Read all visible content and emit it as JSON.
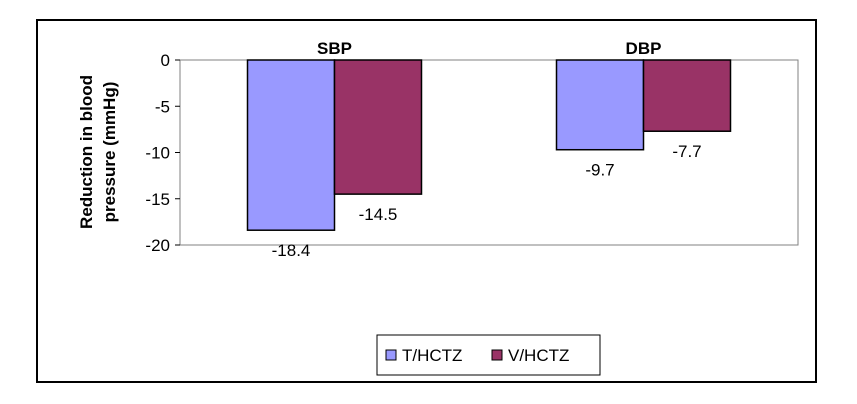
{
  "chart_data": {
    "type": "bar",
    "categories": [
      "SBP",
      "DBP"
    ],
    "series": [
      {
        "name": "T/HCTZ",
        "values": [
          -18.4,
          -9.7
        ],
        "color": "#9999FF"
      },
      {
        "name": "V/HCTZ",
        "values": [
          -14.5,
          -7.7
        ],
        "color": "#993366"
      }
    ],
    "ylabel": "Reduction in blood pressure (mmHg)",
    "ylabel_lines": [
      "Reduction in blood",
      "pressure (mmHg)"
    ],
    "ylim": [
      -20,
      0
    ],
    "yticks": [
      0,
      -5,
      -10,
      -15,
      -20
    ],
    "data_labels": [
      [
        "-18.4",
        "-9.7"
      ],
      [
        "-14.5",
        "-7.7"
      ]
    ],
    "legend_position": "bottom-center",
    "grid": false
  }
}
